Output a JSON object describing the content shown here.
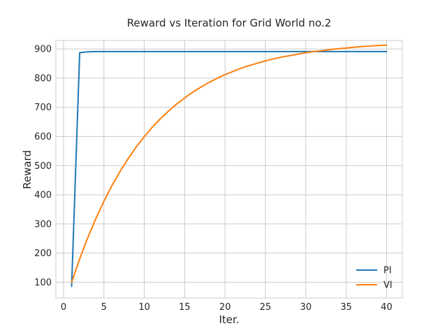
{
  "chart_data": {
    "type": "line",
    "title": "Reward vs Iteration for Grid World no.2",
    "xlabel": "Iter.",
    "ylabel": "Reward",
    "xlim": [
      -0.95,
      41.95
    ],
    "ylim": [
      46,
      929
    ],
    "xticks": [
      0,
      5,
      10,
      15,
      20,
      25,
      30,
      35,
      40
    ],
    "yticks": [
      100,
      200,
      300,
      400,
      500,
      600,
      700,
      800,
      900
    ],
    "grid": true,
    "legend": "lower-right",
    "series": [
      {
        "name": "PI",
        "color": "#1f77b4",
        "x": [
          1,
          2,
          3,
          4,
          5,
          6,
          8,
          10,
          15,
          20,
          25,
          30,
          35,
          40
        ],
        "y": [
          86,
          887,
          890,
          891,
          891,
          891,
          891,
          891,
          891,
          891,
          891,
          891,
          891,
          891
        ]
      },
      {
        "name": "VI",
        "color": "#ff7f0e",
        "x": [
          1,
          2,
          3,
          4,
          5,
          6,
          7,
          8,
          9,
          10,
          11,
          12,
          13,
          14,
          15,
          16,
          17,
          18,
          19,
          20,
          21,
          22,
          23,
          24,
          25,
          26,
          27,
          28,
          29,
          30,
          31,
          32,
          33,
          34,
          35,
          36,
          37,
          38,
          39,
          40
        ],
        "y": [
          100,
          180,
          253,
          318,
          378,
          432,
          480,
          524,
          564,
          599,
          632,
          661,
          687,
          711,
          732,
          752,
          769,
          785,
          799,
          812,
          823,
          834,
          843,
          851,
          859,
          866,
          872,
          877,
          882,
          887,
          891,
          894,
          898,
          901,
          903,
          906,
          908,
          910,
          912,
          913
        ]
      }
    ]
  }
}
